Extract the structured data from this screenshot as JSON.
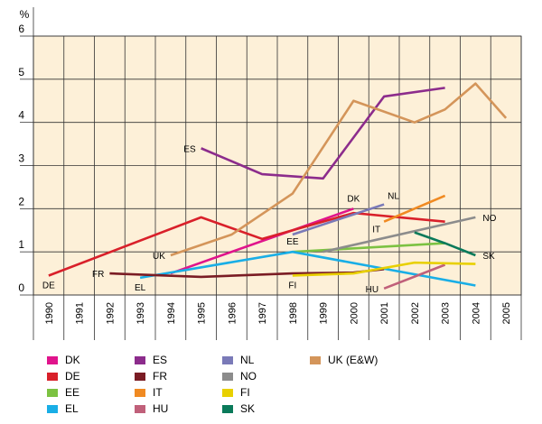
{
  "chart_data": {
    "type": "line",
    "title": "",
    "xlabel": "",
    "ylabel": "%",
    "ylim": [
      0,
      6
    ],
    "yticks": [
      "0",
      "1",
      "2",
      "3",
      "4",
      "5",
      "6"
    ],
    "categories": [
      "1990",
      "1991",
      "1992",
      "1993",
      "1994",
      "1995",
      "1996",
      "1997",
      "1998",
      "1999",
      "2000",
      "2001",
      "2002",
      "2003",
      "2004",
      "2005"
    ],
    "plot_background": "#fdf0d8",
    "series": [
      {
        "name": "DK",
        "color": "#e0148c",
        "points": [
          [
            "1994",
            0.5
          ],
          [
            "2000",
            2.0
          ]
        ],
        "label": {
          "text": "DK",
          "at": "2000",
          "pos": "above"
        }
      },
      {
        "name": "DE",
        "color": "#d9202a",
        "points": [
          [
            "1990",
            0.45
          ],
          [
            "1995",
            1.8
          ],
          [
            "1997",
            1.3
          ],
          [
            "2000",
            1.9
          ],
          [
            "2003",
            1.7
          ]
        ],
        "label": {
          "text": "DE",
          "at": "1990",
          "pos": "below"
        }
      },
      {
        "name": "EE",
        "color": "#7cc242",
        "points": [
          [
            "1998",
            1.0
          ],
          [
            "2003",
            1.2
          ]
        ],
        "label": {
          "text": "EE",
          "at": "1998",
          "pos": "above"
        }
      },
      {
        "name": "EL",
        "color": "#19aee6",
        "points": [
          [
            "1993",
            0.4
          ],
          [
            "1998",
            1.0
          ],
          [
            "2004",
            0.22
          ]
        ],
        "label": {
          "text": "EL",
          "at": "1993",
          "pos": "below"
        }
      },
      {
        "name": "ES",
        "color": "#8c2c8c",
        "points": [
          [
            "1995",
            3.4
          ],
          [
            "1997",
            2.8
          ],
          [
            "1999",
            2.7
          ],
          [
            "2001",
            4.6
          ],
          [
            "2003",
            4.8
          ]
        ],
        "label": {
          "text": "ES",
          "at": "1995",
          "pos": "left"
        }
      },
      {
        "name": "FR",
        "color": "#7a1c24",
        "points": [
          [
            "1992",
            0.5
          ],
          [
            "1995",
            0.42
          ],
          [
            "1998",
            0.5
          ],
          [
            "2000",
            0.52
          ],
          [
            "2001",
            0.6
          ]
        ],
        "label": {
          "text": "FR",
          "at": "1992",
          "pos": "left"
        }
      },
      {
        "name": "IT",
        "color": "#f08a22",
        "points": [
          [
            "2001",
            1.7
          ],
          [
            "2003",
            2.3
          ]
        ],
        "label": {
          "text": "IT",
          "at": "2001",
          "pos": "below-left"
        }
      },
      {
        "name": "HU",
        "color": "#c0607a",
        "points": [
          [
            "2001",
            0.15
          ],
          [
            "2003",
            0.7
          ]
        ],
        "label": {
          "text": "HU",
          "at": "2001",
          "pos": "left"
        }
      },
      {
        "name": "NL",
        "color": "#7a7ab8",
        "points": [
          [
            "1998",
            1.4
          ],
          [
            "2001",
            2.1
          ]
        ],
        "label": {
          "text": "NL",
          "at": "2001",
          "pos": "above-right"
        }
      },
      {
        "name": "NO",
        "color": "#8c8c8c",
        "points": [
          [
            "1999",
            1.0
          ],
          [
            "2004",
            1.8
          ]
        ],
        "label": {
          "text": "NO",
          "at": "2004",
          "pos": "right"
        }
      },
      {
        "name": "FI",
        "color": "#e8d000",
        "points": [
          [
            "1998",
            0.45
          ],
          [
            "2000",
            0.5
          ],
          [
            "2002",
            0.75
          ],
          [
            "2004",
            0.72
          ]
        ],
        "label": {
          "text": "FI",
          "at": "1998",
          "pos": "below"
        }
      },
      {
        "name": "SK",
        "color": "#0a7a5a",
        "points": [
          [
            "2002",
            1.45
          ],
          [
            "2003",
            1.2
          ],
          [
            "2004",
            0.92
          ]
        ],
        "label": {
          "text": "SK",
          "at": "2004",
          "pos": "right"
        }
      },
      {
        "name": "UK (E&W)",
        "color": "#d4955a",
        "points": [
          [
            "1994",
            0.92
          ],
          [
            "1996",
            1.4
          ],
          [
            "1998",
            2.35
          ],
          [
            "2000",
            4.5
          ],
          [
            "2002",
            4.0
          ],
          [
            "2003",
            4.3
          ],
          [
            "2004",
            4.9
          ],
          [
            "2005",
            4.1
          ]
        ],
        "label": {
          "text": "UK",
          "at": "1994",
          "pos": "left"
        }
      }
    ]
  }
}
